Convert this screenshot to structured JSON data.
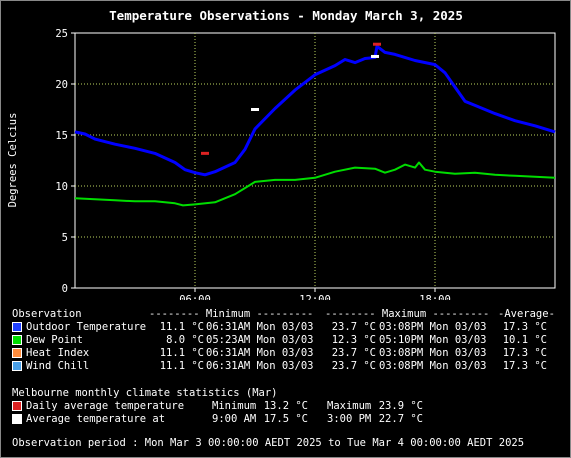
{
  "chart_data": {
    "type": "line",
    "title": "Temperature Observations - Monday March 3, 2025",
    "ylabel": "Degrees Celcius",
    "xlabel": "",
    "ylim": [
      0,
      25
    ],
    "xlim": [
      0,
      24
    ],
    "x_unit": "hour of day",
    "y_ticks": [
      "0",
      "5",
      "10",
      "15",
      "20",
      "25"
    ],
    "x_ticks": [
      {
        "x": 6,
        "label": "06:00"
      },
      {
        "x": 12,
        "label": "12:00"
      },
      {
        "x": 18,
        "label": "18:00"
      }
    ],
    "grid": true,
    "series": [
      {
        "name": "Outdoor Temperature",
        "color": "#0000ff",
        "points": [
          [
            0,
            15.3
          ],
          [
            0.5,
            15.1
          ],
          [
            1,
            14.6
          ],
          [
            2,
            14.1
          ],
          [
            3,
            13.7
          ],
          [
            4,
            13.2
          ],
          [
            5,
            12.3
          ],
          [
            5.5,
            11.6
          ],
          [
            6,
            11.3
          ],
          [
            6.5,
            11.1
          ],
          [
            7,
            11.4
          ],
          [
            8,
            12.3
          ],
          [
            8.5,
            13.6
          ],
          [
            9,
            15.6
          ],
          [
            10,
            17.6
          ],
          [
            11,
            19.4
          ],
          [
            12,
            20.9
          ],
          [
            13,
            21.8
          ],
          [
            13.5,
            22.4
          ],
          [
            14,
            22.1
          ],
          [
            14.5,
            22.5
          ],
          [
            15,
            22.6
          ],
          [
            15.1,
            23.7
          ],
          [
            15.5,
            23.1
          ],
          [
            16,
            22.9
          ],
          [
            17,
            22.3
          ],
          [
            18,
            21.9
          ],
          [
            18.5,
            21.1
          ],
          [
            19,
            19.7
          ],
          [
            19.5,
            18.3
          ],
          [
            20,
            17.9
          ],
          [
            21,
            17.1
          ],
          [
            22,
            16.4
          ],
          [
            23,
            15.9
          ],
          [
            24,
            15.3
          ]
        ]
      },
      {
        "name": "Dew Point",
        "color": "#00dd00",
        "points": [
          [
            0,
            8.8
          ],
          [
            1,
            8.7
          ],
          [
            2,
            8.6
          ],
          [
            3,
            8.5
          ],
          [
            4,
            8.5
          ],
          [
            5,
            8.3
          ],
          [
            5.4,
            8.1
          ],
          [
            6,
            8.2
          ],
          [
            7,
            8.4
          ],
          [
            8,
            9.2
          ],
          [
            9,
            10.4
          ],
          [
            10,
            10.6
          ],
          [
            11,
            10.6
          ],
          [
            12,
            10.8
          ],
          [
            13,
            11.4
          ],
          [
            14,
            11.8
          ],
          [
            15,
            11.7
          ],
          [
            15.5,
            11.3
          ],
          [
            16,
            11.6
          ],
          [
            16.5,
            12.1
          ],
          [
            17,
            11.8
          ],
          [
            17.2,
            12.3
          ],
          [
            17.5,
            11.6
          ],
          [
            18,
            11.4
          ],
          [
            19,
            11.2
          ],
          [
            20,
            11.3
          ],
          [
            21,
            11.1
          ],
          [
            22,
            11.0
          ],
          [
            23,
            10.9
          ],
          [
            24,
            10.8
          ]
        ]
      }
    ],
    "markers": [
      {
        "name": "Daily average temperature",
        "color": "#dd2222",
        "points": [
          [
            6.5,
            13.2
          ],
          [
            15.1,
            23.9
          ]
        ]
      },
      {
        "name": "Average temperature at",
        "color": "#ffffff",
        "points": [
          [
            9,
            17.5
          ],
          [
            15,
            22.7
          ]
        ]
      }
    ]
  },
  "table": {
    "header": {
      "observation": "Observation",
      "minimum": "-------- Minimum ---------",
      "maximum": "-------- Maximum ---------",
      "average": "-Average-"
    },
    "rows": [
      {
        "color": "#2040ff",
        "name": "Outdoor Temperature",
        "min_value": "11.1 °C",
        "min_time": "06:31AM Mon 03/03",
        "max_value": "23.7 °C",
        "max_time": "03:08PM Mon 03/03",
        "average": "17.3 °C"
      },
      {
        "color": "#00dd00",
        "name": "Dew Point",
        "min_value": "8.0 °C",
        "min_time": "05:23AM Mon 03/03",
        "max_value": "12.3 °C",
        "max_time": "05:10PM Mon 03/03",
        "average": "10.1 °C"
      },
      {
        "color": "#ff8c3c",
        "name": "Heat Index",
        "min_value": "11.1 °C",
        "min_time": "06:31AM Mon 03/03",
        "max_value": "23.7 °C",
        "max_time": "03:08PM Mon 03/03",
        "average": "17.3 °C"
      },
      {
        "color": "#4aa0e8",
        "name": "Wind Chill",
        "min_value": "11.1 °C",
        "min_time": "06:31AM Mon 03/03",
        "max_value": "23.7 °C",
        "max_time": "03:08PM Mon 03/03",
        "average": "17.3 °C"
      }
    ]
  },
  "climate": {
    "title": "Melbourne monthly climate statistics (Mar)",
    "rows": [
      {
        "color": "#dd2222",
        "name": "Daily average temperature",
        "left_label": "Minimum",
        "left_value": "13.2 °C",
        "right_label": "Maximum",
        "right_value": "23.9 °C"
      },
      {
        "color": "#ffffff",
        "name": "Average temperature at",
        "left_label": "9:00 AM",
        "left_value": "17.5 °C",
        "right_label": "3:00 PM",
        "right_value": "22.7 °C"
      }
    ]
  },
  "footer": "Observation period : Mon Mar 3 00:00:00 AEDT 2025 to Tue Mar 4 00:00:00 AEDT 2025"
}
